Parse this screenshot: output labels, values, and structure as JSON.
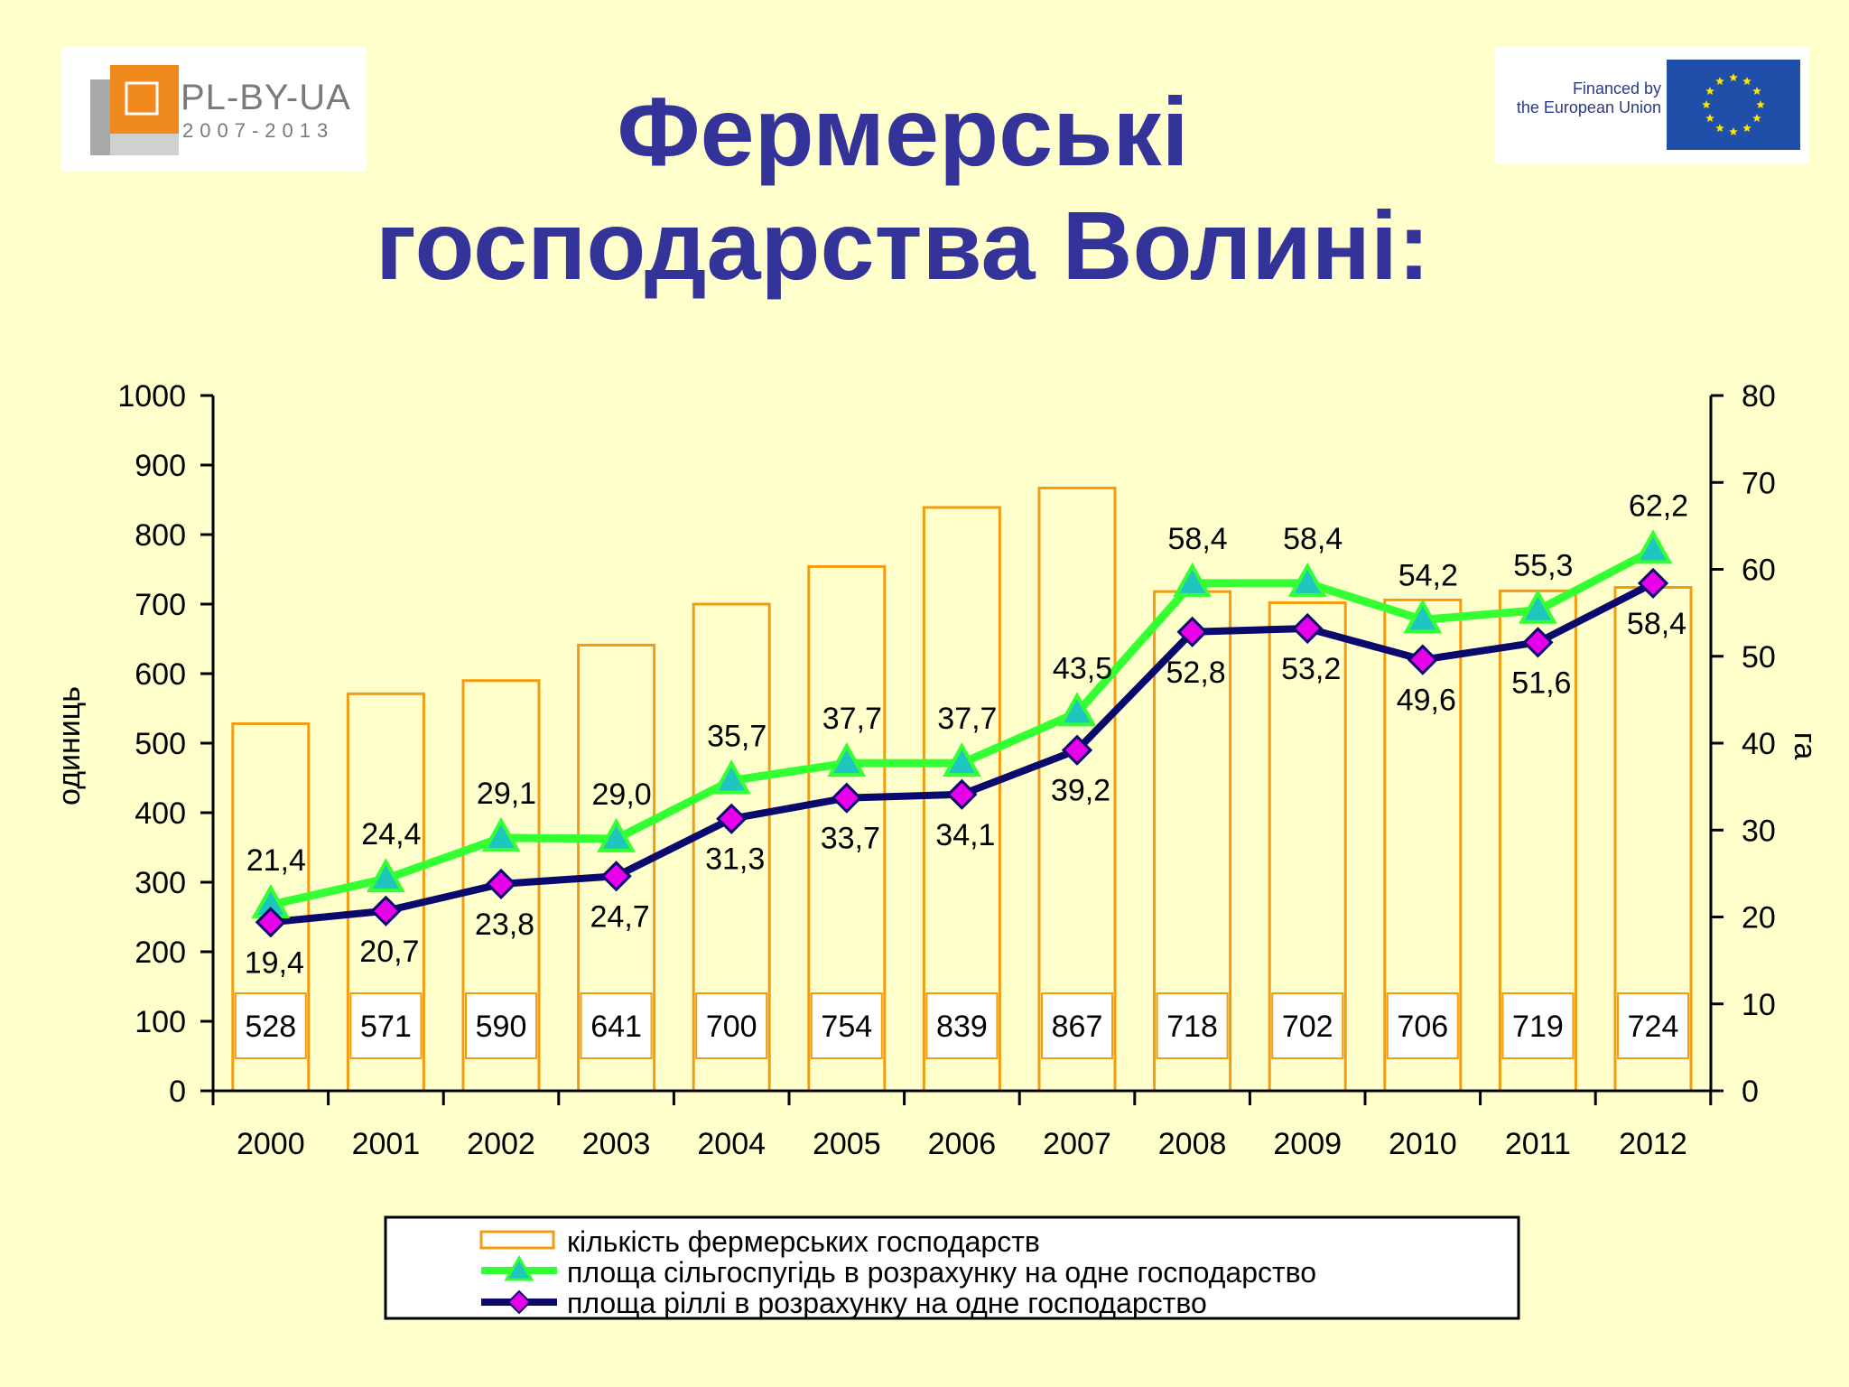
{
  "title_line1": "Фермерські",
  "title_line2": "господарства Волині:",
  "logo_left": {
    "name": "PL-BY-UA",
    "years": "2007-2013"
  },
  "logo_right": {
    "line1": "Financed by",
    "line2": "the European Union"
  },
  "colors": {
    "background": "#FFFFCC",
    "title": "#333399",
    "bar": "#F39C12",
    "series_green": "#33FF33",
    "series_navy": "#0A0A6E",
    "marker_triangle": "#1FC6C0",
    "marker_diamond": "#E800E8"
  },
  "chart_data": {
    "type": "bar+line",
    "categories": [
      "2000",
      "2001",
      "2002",
      "2003",
      "2004",
      "2005",
      "2006",
      "2007",
      "2008",
      "2009",
      "2010",
      "2011",
      "2012"
    ],
    "bars": {
      "name": "кількість фермерських господарств",
      "values": [
        528,
        571,
        590,
        641,
        700,
        754,
        839,
        867,
        718,
        702,
        706,
        719,
        724
      ],
      "labels": [
        "528",
        "571",
        "590",
        "641",
        "700",
        "754",
        "839",
        "867",
        "718",
        "702",
        "706",
        "719",
        "724"
      ]
    },
    "series": [
      {
        "name": "площа сільгоспугідь в розрахунку на одне господарство",
        "values": [
          21.4,
          24.4,
          29.1,
          29.0,
          35.7,
          37.7,
          37.7,
          43.5,
          58.4,
          58.4,
          54.2,
          55.3,
          62.2
        ],
        "labels": [
          "21,4",
          "24,4",
          "29,1",
          "29,0",
          "35,7",
          "37,7",
          "37,7",
          "43,5",
          "58,4",
          "58,4",
          "54,2",
          "55,3",
          "62,2"
        ],
        "marker": "triangle"
      },
      {
        "name": "площа ріллі в розрахунку на одне господарство",
        "values": [
          19.4,
          20.7,
          23.8,
          24.7,
          31.3,
          33.7,
          34.1,
          39.2,
          52.8,
          53.2,
          49.6,
          51.6,
          58.4
        ],
        "labels": [
          "19,4",
          "20,7",
          "23,8",
          "24,7",
          "31,3",
          "33,7",
          "34,1",
          "39,2",
          "52,8",
          "53,2",
          "49,6",
          "51,6",
          "58,4"
        ],
        "marker": "diamond"
      }
    ],
    "ylabel_left": "одиниць",
    "ylabel_right": "га",
    "ylim_left": [
      0,
      1000
    ],
    "ylim_right": [
      0,
      80
    ],
    "yticks_left": [
      "0",
      "100",
      "200",
      "300",
      "400",
      "500",
      "600",
      "700",
      "800",
      "900",
      "1000"
    ],
    "yticks_right": [
      "0",
      "10",
      "20",
      "30",
      "40",
      "50",
      "60",
      "70",
      "80"
    ],
    "legend_position": "bottom",
    "grid": false
  }
}
